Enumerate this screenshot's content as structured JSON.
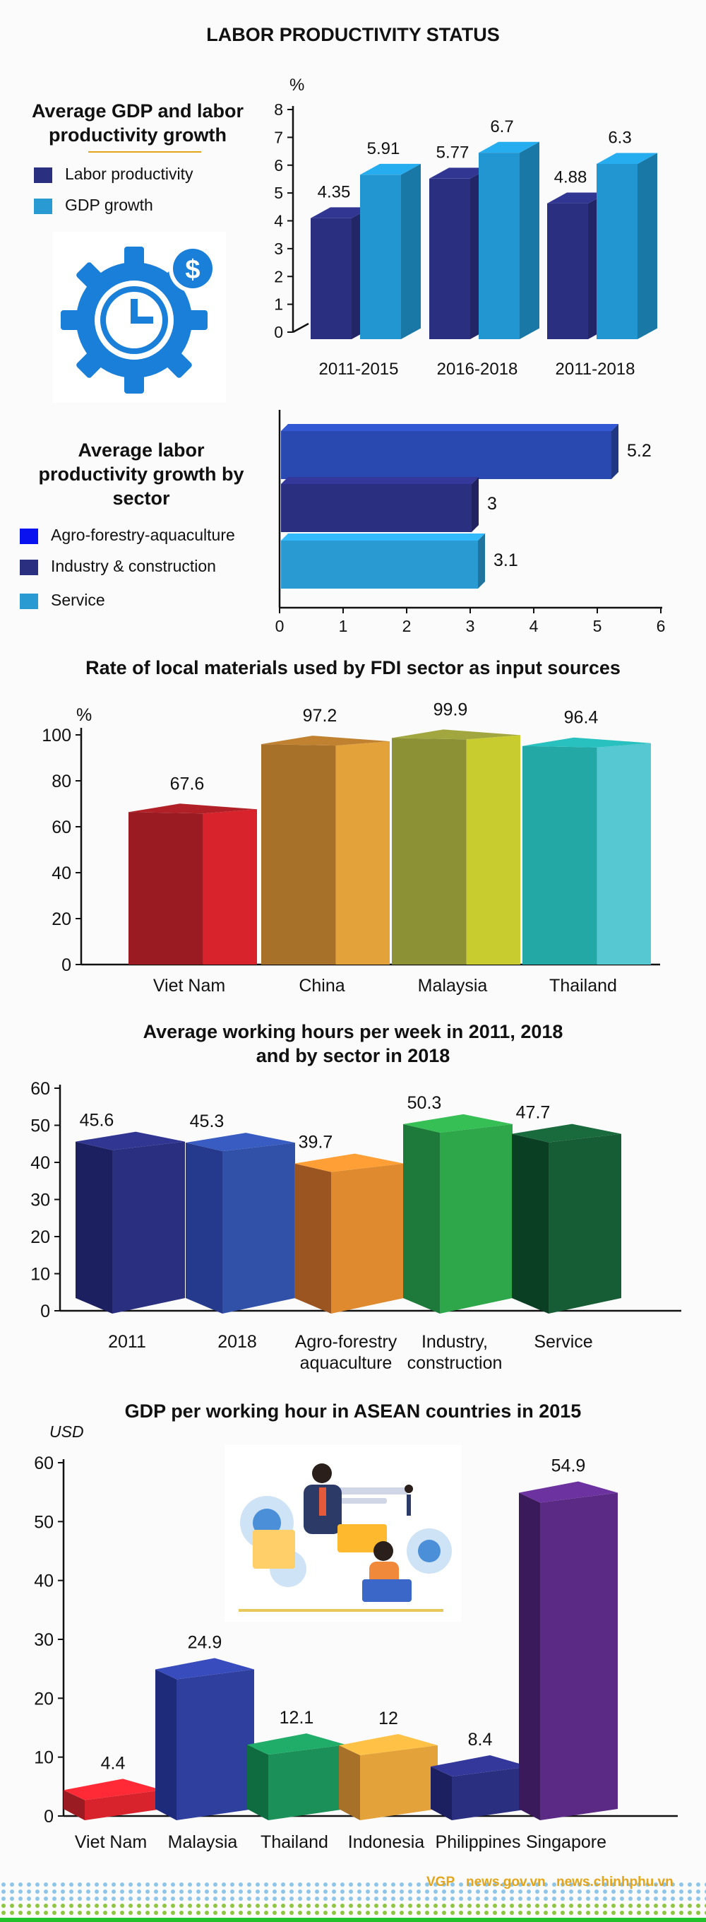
{
  "title": "LABOR PRODUCTIVITY STATUS",
  "chart_data": [
    {
      "type": "bar",
      "title": "Average GDP and labor productivity growth",
      "ylabel": "%",
      "ylim": [
        0,
        8
      ],
      "yticks": [
        "0",
        "1",
        "2",
        "3",
        "4",
        "5",
        "6",
        "7",
        "8"
      ],
      "categories": [
        "2011-2015",
        "2016-2018",
        "2011-2018"
      ],
      "series": [
        {
          "name": "Labor productivity",
          "values": [
            4.35,
            5.77,
            4.88
          ],
          "labels": [
            "4.35",
            "5.77",
            "4.88"
          ],
          "color": "#2b2f80"
        },
        {
          "name": "GDP growth",
          "values": [
            5.91,
            6.7,
            6.3
          ],
          "labels": [
            "5.91",
            "6.7",
            "6.3"
          ],
          "color": "#2196d0"
        }
      ],
      "icon": "clock-dollar-gear-icon"
    },
    {
      "type": "bar",
      "orientation": "horizontal",
      "title": "Average labor productivity growth by sector",
      "xlim": [
        0,
        6
      ],
      "xticks": [
        "0",
        "1",
        "2",
        "3",
        "4",
        "5",
        "6"
      ],
      "categories": [
        "Agro-forestry-aquaculture",
        "Industry & construction",
        "Service"
      ],
      "values": [
        5.2,
        3,
        3.1
      ],
      "labels": [
        "5.2",
        "3",
        "3.1"
      ],
      "colors": [
        "#2a49b0",
        "#2b2f80",
        "#2a9bd2"
      ],
      "legend_colors": [
        "#0a12f0",
        "#2b2f80",
        "#2a9bd2"
      ]
    },
    {
      "type": "bar",
      "title": "Rate of local materials used by FDI sector as input sources",
      "ylabel": "%",
      "ylim": [
        0,
        100
      ],
      "yticks": [
        "0",
        "20",
        "40",
        "60",
        "80",
        "100"
      ],
      "categories": [
        "Viet Nam",
        "China",
        "Malaysia",
        "Thailand"
      ],
      "values": [
        67.6,
        97.2,
        99.9,
        96.4
      ],
      "labels": [
        "67.6",
        "97.2",
        "99.9",
        "96.4"
      ],
      "colors": [
        [
          "#9a1c22",
          "#d8232c"
        ],
        [
          "#a7712a",
          "#e3a23a"
        ],
        [
          "#8c9136",
          "#c9cc2e"
        ],
        [
          "#23a8a6",
          "#55c8d2"
        ]
      ]
    },
    {
      "type": "bar",
      "title_line1": "Average working hours per week in 2011, 2018",
      "title_line2": "and by sector in 2018",
      "ylim": [
        0,
        60
      ],
      "yticks": [
        "0",
        "10",
        "20",
        "30",
        "40",
        "50",
        "60"
      ],
      "categories": [
        [
          "2011"
        ],
        [
          "2018"
        ],
        [
          "Agro-forestry",
          "aquaculture"
        ],
        [
          "Industry,",
          "construction"
        ],
        [
          "Service"
        ]
      ],
      "values": [
        45.6,
        45.3,
        39.7,
        50.3,
        47.7
      ],
      "labels": [
        "45.6",
        "45.3",
        "39.7",
        "50.3",
        "47.7"
      ],
      "colors": [
        [
          "#1c2060",
          "#2b2f80"
        ],
        [
          "#253a8c",
          "#3150a8"
        ],
        [
          "#9a5520",
          "#df8a2e"
        ],
        [
          "#1e7a3a",
          "#2ea64a"
        ],
        [
          "#0b3f24",
          "#165c34"
        ]
      ]
    },
    {
      "type": "bar",
      "title": "GDP per working hour in ASEAN countries in 2015",
      "ylabel": "USD",
      "ylim": [
        0,
        60
      ],
      "yticks": [
        "0",
        "10",
        "20",
        "30",
        "40",
        "50",
        "60"
      ],
      "categories": [
        "Viet Nam",
        "Malaysia",
        "Thailand",
        "Indonesia",
        "Philippines",
        "Singapore"
      ],
      "values": [
        4.4,
        24.9,
        12.1,
        12,
        8.4,
        54.9
      ],
      "labels": [
        "4.4",
        "24.9",
        "12.1",
        "12",
        "8.4",
        "54.9"
      ],
      "colors": [
        [
          "#9a1c22",
          "#d8232c"
        ],
        [
          "#1e2a7a",
          "#2f3f9e"
        ],
        [
          "#0f6b40",
          "#1b9058"
        ],
        [
          "#a7712a",
          "#e3a23a"
        ],
        [
          "#1c2060",
          "#2b2f80"
        ],
        [
          "#3a1a5a",
          "#5a2a85"
        ]
      ],
      "illustration": "business-people-illustration-icon"
    }
  ],
  "footer": {
    "items": [
      "VGP",
      "news.gov.vn",
      "news.chinhphu.vn"
    ]
  }
}
